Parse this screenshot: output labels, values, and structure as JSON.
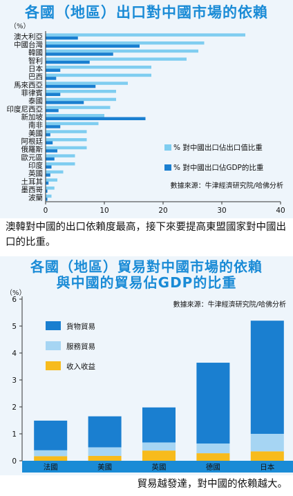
{
  "chart_data": [
    {
      "type": "bar",
      "orientation": "horizontal",
      "title": "各國（地區）出口對中國市場的依賴",
      "unit_label": "（%）",
      "categories": [
        "澳大利亞",
        "中國台灣",
        "韓國",
        "智利",
        "日本",
        "巴西",
        "馬來西亞",
        "菲律賓",
        "泰國",
        "印度尼西亞",
        "新加坡",
        "南非",
        "美國",
        "阿根廷",
        "俄羅斯",
        "歐元區",
        "印度",
        "英國",
        "土耳其",
        "墨西哥",
        "波蘭"
      ],
      "series": [
        {
          "name": "% 對中國出口佔出口值比重",
          "color": "#7fcdf0",
          "values": [
            34,
            27,
            26,
            24,
            18,
            18,
            14,
            12,
            12,
            11,
            10,
            9,
            7,
            7,
            7,
            5,
            5,
            3,
            2,
            1.5,
            1
          ]
        },
        {
          "name": "% 對中國出口佔GDP的比重",
          "color": "#1a7fd0",
          "values": [
            5.5,
            16,
            11.5,
            7.5,
            2.5,
            1.8,
            8.5,
            2.5,
            6.5,
            2.2,
            17,
            2.5,
            0.8,
            1.2,
            2,
            1.5,
            1,
            0.8,
            0.5,
            0.3,
            0.3
          ]
        }
      ],
      "xlim": [
        0,
        40
      ],
      "xticks": [
        0,
        10,
        20,
        30,
        40
      ],
      "grid": false,
      "legend_position": "bottom-right",
      "source": "數據來源：牛津經濟研究院/哈佛分析"
    },
    {
      "type": "bar",
      "orientation": "vertical",
      "stacked": true,
      "title": "各國（地區）貿易對中國市場的依賴 與中國的貿易佔GDP的比重",
      "unit_label": "（%）",
      "categories": [
        "法國",
        "美國",
        "英國",
        "德國",
        "日本"
      ],
      "series": [
        {
          "name": "收入收益",
          "color": "#f7bb1c",
          "values": [
            0.17,
            0.18,
            0.38,
            0.28,
            0.35
          ]
        },
        {
          "name": "服務貿易",
          "color": "#a6d5f3",
          "values": [
            0.22,
            0.32,
            0.3,
            0.36,
            0.65
          ]
        },
        {
          "name": "貨物貿易",
          "color": "#1a7fd0",
          "values": [
            1.1,
            1.15,
            1.3,
            3.0,
            4.2
          ]
        }
      ],
      "ylim": [
        0,
        6
      ],
      "yticks": [
        0,
        1,
        2,
        3,
        4,
        5,
        6
      ],
      "grid": false,
      "legend_position": "top-left",
      "source": "數據來源：牛津經濟研究院/哈佛分析"
    }
  ],
  "captions": {
    "first": "澳韓對中國的出口依賴度最高，接下來要提高東盟國家對中國出口的比重。",
    "second": "貿易越發達，對中國的依賴越大。"
  },
  "chart2_title_lines": [
    "各國（地區）貿易對中國市場的依賴",
    "與中國的貿易佔GDP的比重"
  ]
}
